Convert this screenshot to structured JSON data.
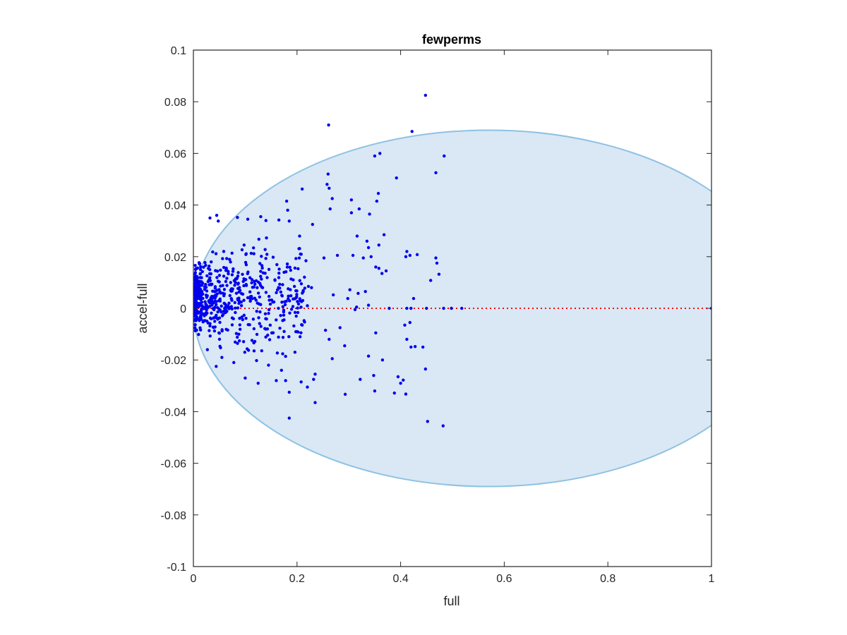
{
  "chart_data": {
    "type": "scatter",
    "title": "fewperms",
    "xlabel": "full",
    "ylabel": "accel-full",
    "xlim": [
      0,
      1
    ],
    "ylim": [
      -0.1,
      0.1
    ],
    "xticks": [
      0,
      0.2,
      0.4,
      0.6,
      0.8,
      1
    ],
    "xtick_labels": [
      "0",
      "0.2",
      "0.4",
      "0.6",
      "0.8",
      "1"
    ],
    "yticks": [
      -0.1,
      -0.08,
      -0.06,
      -0.04,
      -0.02,
      0,
      0.02,
      0.04,
      0.06,
      0.08,
      0.1
    ],
    "ytick_labels": [
      "-0.1",
      "-0.08",
      "-0.06",
      "-0.04",
      "-0.02",
      "0",
      "0.02",
      "0.04",
      "0.06",
      "0.08",
      "0.1"
    ],
    "grid": false,
    "region": {
      "type": "ellipse",
      "center": [
        0.57,
        0.0
      ],
      "radius_x": 0.57,
      "radius_y": 0.069,
      "fill_color": "#d9e8f4",
      "edge_color": "#8ec1e3"
    },
    "reference_line": {
      "y": 0,
      "x_range": [
        0,
        1
      ],
      "color": "#ff0000",
      "style": "dotted"
    },
    "marker_color": "#0000ee",
    "points": [
      [
        0.448,
        0.0825
      ],
      [
        0.261,
        0.071
      ],
      [
        0.422,
        0.0685
      ],
      [
        0.484,
        0.059
      ],
      [
        0.468,
        0.0525
      ],
      [
        0.36,
        0.06
      ],
      [
        0.35,
        0.059
      ],
      [
        0.26,
        0.052
      ],
      [
        0.392,
        0.0505
      ],
      [
        0.258,
        0.048
      ],
      [
        0.262,
        0.0465
      ],
      [
        0.21,
        0.0462
      ],
      [
        0.357,
        0.0445
      ],
      [
        0.268,
        0.0425
      ],
      [
        0.354,
        0.0415
      ],
      [
        0.305,
        0.042
      ],
      [
        0.18,
        0.0415
      ],
      [
        0.32,
        0.0385
      ],
      [
        0.264,
        0.0385
      ],
      [
        0.182,
        0.038
      ],
      [
        0.34,
        0.0365
      ],
      [
        0.305,
        0.037
      ],
      [
        0.045,
        0.036
      ],
      [
        0.13,
        0.0355
      ],
      [
        0.085,
        0.0352
      ],
      [
        0.14,
        0.034
      ],
      [
        0.165,
        0.0342
      ],
      [
        0.032,
        0.035
      ],
      [
        0.185,
        0.0338
      ],
      [
        0.105,
        0.0345
      ],
      [
        0.048,
        0.0338
      ],
      [
        0.23,
        0.0325
      ],
      [
        0.316,
        0.028
      ],
      [
        0.368,
        0.0285
      ],
      [
        0.335,
        0.026
      ],
      [
        0.205,
        0.028
      ],
      [
        0.338,
        0.0235
      ],
      [
        0.358,
        0.0245
      ],
      [
        0.343,
        0.02
      ],
      [
        0.412,
        0.022
      ],
      [
        0.418,
        0.0205
      ],
      [
        0.432,
        0.0208
      ],
      [
        0.468,
        0.0195
      ],
      [
        0.47,
        0.0175
      ],
      [
        0.41,
        0.02
      ],
      [
        0.352,
        0.016
      ],
      [
        0.364,
        0.0135
      ],
      [
        0.358,
        0.0155
      ],
      [
        0.372,
        0.0145
      ],
      [
        0.458,
        0.0108
      ],
      [
        0.474,
        0.0132
      ],
      [
        0.278,
        0.0205
      ],
      [
        0.308,
        0.0205
      ],
      [
        0.328,
        0.0195
      ],
      [
        0.252,
        0.0195
      ],
      [
        0.425,
        0.0038
      ],
      [
        0.332,
        0.0065
      ],
      [
        0.318,
        0.0058
      ],
      [
        0.302,
        0.0072
      ],
      [
        0.298,
        0.0038
      ],
      [
        0.27,
        0.0052
      ],
      [
        0.222,
        0.0085
      ],
      [
        0.215,
        0.0078
      ],
      [
        0.195,
        0.0085
      ],
      [
        0.42,
        0.0
      ],
      [
        0.518,
        0.0
      ],
      [
        0.412,
        0.0
      ],
      [
        0.378,
        0.0
      ],
      [
        0.315,
        0.0005
      ],
      [
        0.22,
        0.001
      ],
      [
        0.312,
        -0.0005
      ],
      [
        0.338,
        0.0012
      ],
      [
        0.408,
        -0.0065
      ],
      [
        0.418,
        -0.0055
      ],
      [
        0.352,
        -0.0095
      ],
      [
        0.412,
        -0.012
      ],
      [
        0.42,
        -0.015
      ],
      [
        0.428,
        -0.0148
      ],
      [
        0.443,
        -0.015
      ],
      [
        0.338,
        -0.0185
      ],
      [
        0.448,
        -0.0235
      ],
      [
        0.365,
        -0.02
      ],
      [
        0.348,
        -0.026
      ],
      [
        0.322,
        -0.0275
      ],
      [
        0.293,
        -0.0333
      ],
      [
        0.395,
        -0.0265
      ],
      [
        0.405,
        -0.0278
      ],
      [
        0.4,
        -0.029
      ],
      [
        0.388,
        -0.0328
      ],
      [
        0.41,
        -0.0332
      ],
      [
        0.35,
        -0.032
      ],
      [
        0.255,
        -0.0085
      ],
      [
        0.262,
        -0.012
      ],
      [
        0.268,
        -0.0195
      ],
      [
        0.283,
        -0.0075
      ],
      [
        0.292,
        -0.0145
      ],
      [
        0.235,
        -0.0255
      ],
      [
        0.232,
        -0.0275
      ],
      [
        0.22,
        -0.0305
      ],
      [
        0.235,
        -0.0365
      ],
      [
        0.208,
        -0.0285
      ],
      [
        0.185,
        -0.0325
      ],
      [
        0.185,
        -0.0425
      ],
      [
        0.178,
        -0.028
      ],
      [
        0.16,
        -0.028
      ],
      [
        0.452,
        -0.0438
      ],
      [
        0.482,
        -0.0455
      ],
      [
        0.206,
        -0.011
      ],
      [
        0.196,
        -0.017
      ],
      [
        0.21,
        -0.0065
      ],
      [
        0.17,
        -0.024
      ],
      [
        0.145,
        -0.022
      ],
      [
        0.125,
        -0.029
      ],
      [
        0.1,
        -0.027
      ],
      [
        0.078,
        -0.021
      ],
      [
        0.055,
        -0.019
      ],
      [
        0.044,
        -0.0225
      ],
      [
        0.027,
        -0.016
      ],
      [
        0.212,
        0.0065
      ],
      [
        0.228,
        0.008
      ],
      [
        0.45,
        0.0
      ],
      [
        0.483,
        0.0
      ],
      [
        0.498,
        0.0
      ],
      [
        1.0,
        0.0
      ]
    ],
    "cluster": {
      "generated": true,
      "count": 650,
      "x_min": 0.003,
      "x_max": 0.22,
      "y_spread": 0.03
    }
  }
}
